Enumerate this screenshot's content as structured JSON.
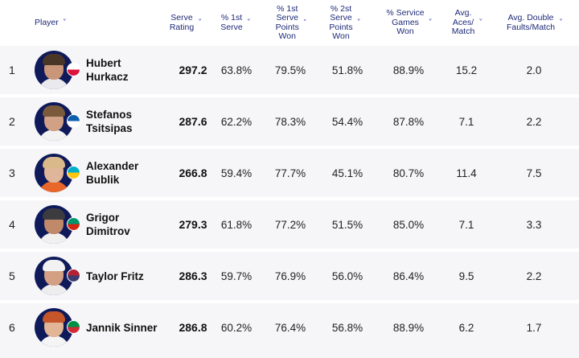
{
  "columns": [
    {
      "key": "player",
      "label": "Player",
      "sort_icon": "chevron-down-icon"
    },
    {
      "key": "rating",
      "label": "Serve\nRating",
      "sort_icon": "chevron-down-icon"
    },
    {
      "key": "first_serve",
      "label": "% 1st\nServe",
      "sort_icon": "chevron-down-icon"
    },
    {
      "key": "first_won",
      "label": "% 1st\nServe\nPoints\nWon",
      "sort_icon": "chevron-up-icon"
    },
    {
      "key": "second_won",
      "label": "% 2st\nServe\nPoints\nWon",
      "sort_icon": "chevron-down-icon"
    },
    {
      "key": "games_won",
      "label": "% Service\nGames\nWon",
      "sort_icon": "chevron-down-icon"
    },
    {
      "key": "aces",
      "label": "Avg.\nAces/\nMatch",
      "sort_icon": "chevron-down-icon"
    },
    {
      "key": "df",
      "label": "Avg. Double\nFaults/Match",
      "sort_icon": "chevron-down-icon"
    }
  ],
  "rows": [
    {
      "rank": "1",
      "name": "Hubert\nHurkacz",
      "flag": [
        "#ffffff",
        "#dc143c"
      ],
      "avatar": {
        "bg": "#0f1a5a",
        "skin": "#c9967a",
        "hair": "#4a3626",
        "shirt": "#e9e9ee"
      },
      "rating": "297.2",
      "first_serve": "63.8%",
      "first_won": "79.5%",
      "second_won": "51.8%",
      "games_won": "88.9%",
      "aces": "15.2",
      "df": "2.0"
    },
    {
      "rank": "2",
      "name": "Stefanos\nTsitsipas",
      "flag": [
        "#0d5eaf",
        "#ffffff"
      ],
      "avatar": {
        "bg": "#0f1a5a",
        "skin": "#d0a184",
        "hair": "#7a5a3a",
        "shirt": "#f2f2f2"
      },
      "rating": "287.6",
      "first_serve": "62.2%",
      "first_won": "78.3%",
      "second_won": "54.4%",
      "games_won": "87.8%",
      "aces": "7.1",
      "df": "2.2"
    },
    {
      "rank": "3",
      "name": "Alexander\nBublik",
      "flag": [
        "#00afca",
        "#fec50c"
      ],
      "avatar": {
        "bg": "#0f1a5a",
        "skin": "#e0b69a",
        "hair": "#d9b98a",
        "shirt": "#e8672a"
      },
      "rating": "266.8",
      "first_serve": "59.4%",
      "first_won": "77.7%",
      "second_won": "45.1%",
      "games_won": "80.7%",
      "aces": "11.4",
      "df": "7.5"
    },
    {
      "rank": "4",
      "name": "Grigor\nDimitrov",
      "flag": [
        "#00966e",
        "#d62612"
      ],
      "avatar": {
        "bg": "#0f1a5a",
        "skin": "#c08a6a",
        "hair": "#3b3b40",
        "shirt": "#f0f0f0"
      },
      "rating": "279.3",
      "first_serve": "61.8%",
      "first_won": "77.2%",
      "second_won": "51.5%",
      "games_won": "85.0%",
      "aces": "7.1",
      "df": "3.3"
    },
    {
      "rank": "5",
      "name": "Taylor Fritz",
      "flag": [
        "#b22234",
        "#3c3b6e"
      ],
      "avatar": {
        "bg": "#0f1a5a",
        "skin": "#d4a083",
        "hair": "#f2f2f2",
        "shirt": "#ededed"
      },
      "rating": "286.3",
      "first_serve": "59.7%",
      "first_won": "76.9%",
      "second_won": "56.0%",
      "games_won": "86.4%",
      "aces": "9.5",
      "df": "2.2"
    },
    {
      "rank": "6",
      "name": "Jannik Sinner",
      "flag": [
        "#009246",
        "#ce2b37"
      ],
      "avatar": {
        "bg": "#0f1a5a",
        "skin": "#e2b596",
        "hair": "#c4562a",
        "shirt": "#f4f4f4"
      },
      "rating": "286.8",
      "first_serve": "60.2%",
      "first_won": "76.4%",
      "second_won": "56.8%",
      "games_won": "88.9%",
      "aces": "6.2",
      "df": "1.7"
    }
  ],
  "colors": {
    "header_text": "#1e2a78",
    "sort_icon": "#3b4cc0",
    "row_bg": "#f6f6f8"
  }
}
